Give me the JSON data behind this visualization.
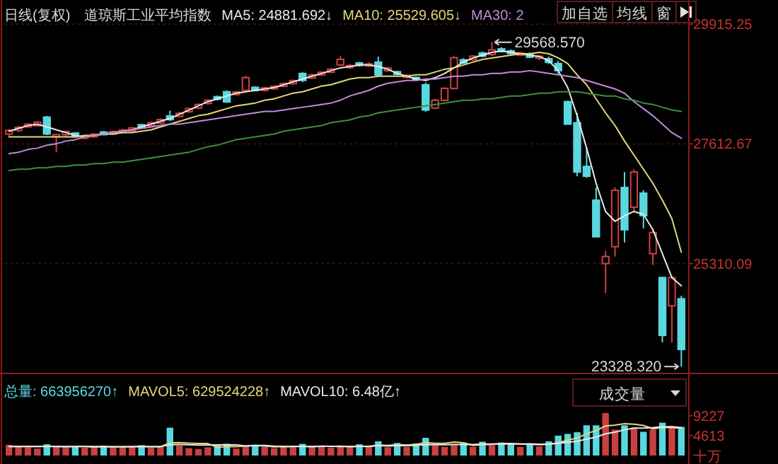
{
  "chart_data": [
    {
      "type": "candlestick",
      "title": "日线(复权)　道琼斯工业平均指数",
      "legend": "top",
      "tick_labels": "y",
      "grid": "y",
      "ylim": [
        23250,
        30380
      ],
      "yticks": [
        29915.25,
        27612.67,
        25310.09
      ],
      "categories": [
        null,
        null,
        null,
        null,
        null,
        null,
        null,
        null,
        null,
        null,
        null,
        null,
        null,
        null,
        null,
        null,
        null,
        null,
        null,
        null,
        null,
        null,
        null,
        null,
        null,
        null,
        null,
        null,
        null,
        null,
        null,
        null,
        null,
        null,
        null,
        null,
        null,
        null,
        null,
        null,
        null,
        null,
        null,
        null,
        null,
        null,
        null,
        null,
        null,
        null,
        null,
        null,
        null,
        null,
        null,
        null,
        null,
        null,
        null,
        null,
        null,
        null,
        null,
        null,
        null,
        null,
        null,
        null,
        null,
        null,
        null,
        null
      ],
      "ohlc": [
        [
          27800,
          27900,
          27760,
          27870
        ],
        [
          27870,
          27960,
          27840,
          27930
        ],
        [
          27940,
          28010,
          27920,
          27990
        ],
        [
          27960,
          28050,
          27950,
          28030
        ],
        [
          28127,
          28150,
          27780,
          27802
        ],
        [
          27750,
          27800,
          27450,
          27790
        ],
        [
          27790,
          27870,
          27760,
          27850
        ],
        [
          27820,
          27840,
          27730,
          27750
        ],
        [
          27720,
          27790,
          27700,
          27770
        ],
        [
          27750,
          27820,
          27730,
          27800
        ],
        [
          27840,
          27860,
          27780,
          27790
        ],
        [
          27800,
          27870,
          27780,
          27850
        ],
        [
          27830,
          27900,
          27810,
          27880
        ],
        [
          27860,
          27940,
          27840,
          27920
        ],
        [
          27980,
          28000,
          27900,
          27920
        ],
        [
          27960,
          28040,
          27940,
          28020
        ],
        [
          28010,
          28100,
          27990,
          28080
        ],
        [
          28150,
          28250,
          28050,
          28080
        ],
        [
          28140,
          28230,
          28120,
          28200
        ],
        [
          28230,
          28310,
          28210,
          28290
        ],
        [
          28300,
          28390,
          28280,
          28370
        ],
        [
          28390,
          28470,
          28370,
          28450
        ],
        [
          28520,
          28540,
          28450,
          28470
        ],
        [
          28615,
          28640,
          28400,
          28420
        ],
        [
          28560,
          28630,
          28540,
          28610
        ],
        [
          28642,
          28920,
          28620,
          28886
        ],
        [
          28700,
          28720,
          28620,
          28640
        ],
        [
          28640,
          28710,
          28620,
          28690
        ],
        [
          28670,
          28740,
          28650,
          28720
        ],
        [
          28720,
          28790,
          28700,
          28770
        ],
        [
          28770,
          28850,
          28750,
          28830
        ],
        [
          28967,
          28990,
          28800,
          28832
        ],
        [
          28880,
          28960,
          28860,
          28940
        ],
        [
          28940,
          29010,
          28920,
          28990
        ],
        [
          28990,
          29070,
          28970,
          29050
        ],
        [
          29130,
          29300,
          29110,
          29238
        ],
        [
          29080,
          29150,
          29060,
          29120
        ],
        [
          29170,
          29190,
          29100,
          29120
        ],
        [
          29110,
          29180,
          29090,
          29150
        ],
        [
          29184,
          29290,
          28900,
          28940
        ],
        [
          29020,
          29090,
          29000,
          29070
        ],
        [
          29000,
          29020,
          28930,
          28950
        ],
        [
          28890,
          28950,
          28870,
          28930
        ],
        [
          28890,
          28910,
          28830,
          28850
        ],
        [
          28750,
          28790,
          28230,
          28263
        ],
        [
          28300,
          28480,
          28280,
          28450
        ],
        [
          28450,
          28700,
          28430,
          28680
        ],
        [
          28680,
          29300,
          28660,
          29270
        ],
        [
          29230,
          29260,
          29150,
          29170
        ],
        [
          29230,
          29320,
          29210,
          29300
        ],
        [
          29360,
          29390,
          29280,
          29300
        ],
        [
          29330,
          29568.57,
          29300,
          29420
        ],
        [
          29440,
          29470,
          29370,
          29390
        ],
        [
          29400,
          29430,
          29330,
          29350
        ],
        [
          29320,
          29380,
          29300,
          29360
        ],
        [
          29340,
          29370,
          29260,
          29280
        ],
        [
          29260,
          29320,
          29220,
          29300
        ],
        [
          29250,
          29290,
          29150,
          29180
        ],
        [
          29157,
          29210,
          28960,
          29021
        ],
        [
          28425,
          28440,
          27990,
          27992
        ],
        [
          28019,
          28209,
          26990,
          27070
        ],
        [
          27179,
          27531,
          26960,
          26990
        ],
        [
          26529,
          26773,
          25820,
          25825
        ],
        [
          25310,
          25553,
          24741,
          25445
        ],
        [
          25635,
          26773,
          25445,
          26719
        ],
        [
          26773,
          27070,
          25716,
          25960
        ],
        [
          26393,
          27125,
          26312,
          27070
        ],
        [
          26664,
          26719,
          25987,
          26231
        ],
        [
          25500,
          25987,
          25283,
          25906
        ],
        [
          25040,
          25060,
          23793,
          23928
        ],
        [
          24497,
          25080,
          23793,
          25040
        ],
        [
          24632,
          24690,
          23328.32,
          23657
        ]
      ],
      "series": [
        {
          "name": "MA5: 24881.692↓",
          "type": "line",
          "color": "#e8e8e8",
          "values": [
            27856,
            27910,
            27965,
            27992,
            27938,
            27884,
            27830,
            27775,
            27748,
            27775,
            27802,
            27830,
            27856,
            27884,
            27938,
            27992,
            28046,
            28100,
            28182,
            28263,
            28344,
            28425,
            28479,
            28534,
            28588,
            28615,
            28642,
            28669,
            28696,
            28750,
            28805,
            28859,
            28913,
            28967,
            29021,
            29075,
            29102,
            29130,
            29130,
            29102,
            29048,
            28967,
            28913,
            28859,
            28832,
            28886,
            28967,
            29075,
            29184,
            29265,
            29319,
            29373,
            29400,
            29373,
            29346,
            29319,
            29292,
            29211,
            29021,
            28696,
            28154,
            27531,
            26854,
            26312,
            26122,
            26230,
            26312,
            26258,
            25960,
            25500,
            25040,
            24881.692
          ]
        },
        {
          "name": "MA10: 25529.605↓",
          "type": "line",
          "color": "#e2d77c",
          "values": [
            27748,
            27748,
            27748,
            27748,
            27748,
            27748,
            27748,
            27748,
            27775,
            27775,
            27802,
            27802,
            27830,
            27830,
            27856,
            27884,
            27938,
            27992,
            28046,
            28100,
            28154,
            28182,
            28236,
            28290,
            28344,
            28371,
            28398,
            28452,
            28479,
            28534,
            28588,
            28615,
            28669,
            28723,
            28750,
            28805,
            28859,
            28886,
            28886,
            28913,
            28913,
            28913,
            28913,
            28940,
            28940,
            28994,
            29048,
            29075,
            29130,
            29184,
            29238,
            29265,
            29292,
            29319,
            29346,
            29346,
            29373,
            29346,
            29265,
            29157,
            28940,
            28750,
            28479,
            28209,
            27965,
            27667,
            27396,
            27125,
            26854,
            26529,
            26176,
            25529.605
          ]
        },
        {
          "name": "MA30: 2",
          "type": "line",
          "color": "#c08ad8",
          "values": [
            27423,
            27450,
            27504,
            27531,
            27586,
            27613,
            27667,
            27694,
            27748,
            27775,
            27802,
            27830,
            27856,
            27884,
            27911,
            27938,
            27965,
            27992,
            27992,
            28019,
            28046,
            28073,
            28100,
            28127,
            28154,
            28182,
            28209,
            28236,
            28236,
            28263,
            28290,
            28317,
            28344,
            28371,
            28398,
            28452,
            28534,
            28588,
            28642,
            28723,
            28777,
            28805,
            28832,
            28832,
            28859,
            28859,
            28886,
            28913,
            28913,
            28940,
            28940,
            28967,
            28967,
            28994,
            28994,
            29021,
            28994,
            28967,
            28940,
            28913,
            28886,
            28832,
            28777,
            28723,
            28669,
            28588,
            28425,
            28290,
            28154,
            27992,
            27830,
            27721
          ]
        },
        {
          "type": "line",
          "color": "#3f8f3f",
          "values": [
            27098,
            27125,
            27125,
            27152,
            27152,
            27179,
            27179,
            27206,
            27206,
            27233,
            27233,
            27260,
            27260,
            27287,
            27315,
            27342,
            27369,
            27396,
            27423,
            27450,
            27504,
            27558,
            27586,
            27640,
            27694,
            27721,
            27748,
            27775,
            27802,
            27856,
            27884,
            27911,
            27938,
            27965,
            28019,
            28046,
            28073,
            28127,
            28154,
            28209,
            28236,
            28263,
            28290,
            28317,
            28344,
            28371,
            28398,
            28425,
            28452,
            28452,
            28479,
            28479,
            28507,
            28534,
            28534,
            28561,
            28588,
            28588,
            28615,
            28615,
            28615,
            28588,
            28561,
            28534,
            28534,
            28479,
            28452,
            28398,
            28371,
            28317,
            28263,
            28236
          ]
        }
      ],
      "annotations": [
        "29568.570",
        "23328.320",
        "加自选",
        "均线",
        "窗"
      ]
    },
    {
      "type": "bar",
      "legend": "top left",
      "tick_labels": "y",
      "ylabel": "十万",
      "ylim": [
        0,
        10500
      ],
      "yticks": [
        9227,
        4613
      ],
      "categories": [
        null,
        null,
        null,
        null,
        null,
        null,
        null,
        null,
        null,
        null,
        null,
        null,
        null,
        null,
        null,
        null,
        null,
        null,
        null,
        null,
        null,
        null,
        null,
        null,
        null,
        null,
        null,
        null,
        null,
        null,
        null,
        null,
        null,
        null,
        null,
        null,
        null,
        null,
        null,
        null,
        null,
        null,
        null,
        null,
        null,
        null,
        null,
        null,
        null,
        null,
        null,
        null,
        null,
        null,
        null,
        null,
        null,
        null,
        null,
        null,
        null,
        null,
        null,
        null,
        null,
        null,
        null,
        null,
        null,
        null,
        null,
        null
      ],
      "series": [
        {
          "name": "总量: 663956270↑",
          "type": "bar",
          "color": "#5ad8e0",
          "values": [
            2500,
            2200,
            1900,
            1600,
            2600,
            2100,
            1900,
            2000,
            1800,
            2000,
            2300,
            1900,
            2100,
            2000,
            2400,
            1800,
            2000,
            6450,
            2300,
            1700,
            1500,
            1900,
            2600,
            2700,
            1600,
            2200,
            2500,
            2000,
            1700,
            2100,
            1900,
            2700,
            2000,
            2100,
            1800,
            2300,
            1900,
            2600,
            2000,
            3300,
            1900,
            2900,
            2000,
            2800,
            4100,
            2300,
            2000,
            2400,
            3000,
            2000,
            3200,
            2400,
            3000,
            2700,
            2000,
            2800,
            2100,
            3300,
            4600,
            5000,
            5400,
            7000,
            7000,
            9860,
            6000,
            7000,
            6500,
            5500,
            6000,
            7600,
            6800,
            6639.5627
          ],
          "colors": [
            "#c84040",
            "#c84040",
            "#c84040",
            "#c84040",
            "#5ad8e0",
            "#c84040",
            "#c84040",
            "#5ad8e0",
            "#c84040",
            "#c84040",
            "#5ad8e0",
            "#c84040",
            "#c84040",
            "#c84040",
            "#5ad8e0",
            "#c84040",
            "#c84040",
            "#5ad8e0",
            "#c84040",
            "#c84040",
            "#c84040",
            "#c84040",
            "#5ad8e0",
            "#5ad8e0",
            "#c84040",
            "#c84040",
            "#5ad8e0",
            "#c84040",
            "#c84040",
            "#c84040",
            "#c84040",
            "#5ad8e0",
            "#c84040",
            "#c84040",
            "#c84040",
            "#c84040",
            "#c84040",
            "#5ad8e0",
            "#c84040",
            "#5ad8e0",
            "#c84040",
            "#5ad8e0",
            "#c84040",
            "#5ad8e0",
            "#5ad8e0",
            "#c84040",
            "#c84040",
            "#c84040",
            "#5ad8e0",
            "#c84040",
            "#5ad8e0",
            "#c84040",
            "#5ad8e0",
            "#5ad8e0",
            "#c84040",
            "#5ad8e0",
            "#c84040",
            "#5ad8e0",
            "#5ad8e0",
            "#5ad8e0",
            "#5ad8e0",
            "#5ad8e0",
            "#5ad8e0",
            "#c84040",
            "#c84040",
            "#5ad8e0",
            "#c84040",
            "#5ad8e0",
            "#c84040",
            "#5ad8e0",
            "#c84040",
            "#5ad8e0"
          ]
        },
        {
          "name": "MAVOL5: 629524228↑",
          "type": "line",
          "color": "#e2d77c",
          "values": [
            2100,
            2100,
            2100,
            2100,
            2160,
            2080,
            2020,
            2100,
            2080,
            1960,
            2000,
            2000,
            2020,
            2060,
            2140,
            2040,
            2060,
            2930,
            2990,
            2850,
            2790,
            2770,
            1900,
            2080,
            2060,
            2200,
            2320,
            2200,
            2000,
            2100,
            2040,
            2080,
            2080,
            2160,
            2100,
            2180,
            2020,
            2140,
            2120,
            2420,
            2340,
            2540,
            2420,
            2580,
            2980,
            2820,
            2840,
            3120,
            2960,
            2340,
            2520,
            2600,
            2720,
            2660,
            2660,
            2580,
            2520,
            2580,
            2960,
            3560,
            4080,
            5060,
            5800,
            6850,
            7050,
            7370,
            7270,
            6970,
            6200,
            6520,
            6480,
            6295.24228
          ]
        },
        {
          "name": "MAVOL10: 6.48亿↑",
          "type": "line",
          "color": "#e8e8e8",
          "values": [
            2100,
            2100,
            2100,
            2100,
            2100,
            2100,
            2100,
            2100,
            2100,
            2100,
            2080,
            2040,
            2040,
            2060,
            2100,
            2060,
            2070,
            2490,
            2530,
            2490,
            2420,
            2410,
            2480,
            2520,
            2460,
            2200,
            2300,
            2330,
            2180,
            2100,
            2120,
            2140,
            2060,
            2140,
            2140,
            2100,
            2080,
            2140,
            2110,
            2290,
            2230,
            2280,
            2300,
            2380,
            2500,
            2530,
            2490,
            2530,
            2560,
            2560,
            2660,
            2670,
            2730,
            2810,
            2660,
            2700,
            2610,
            2640,
            2830,
            3060,
            3300,
            3800,
            4280,
            5050,
            5410,
            5970,
            6370,
            6350,
            6460,
            6650,
            6700,
            6480
          ]
        }
      ],
      "annotations": [
        "成交量"
      ]
    }
  ]
}
